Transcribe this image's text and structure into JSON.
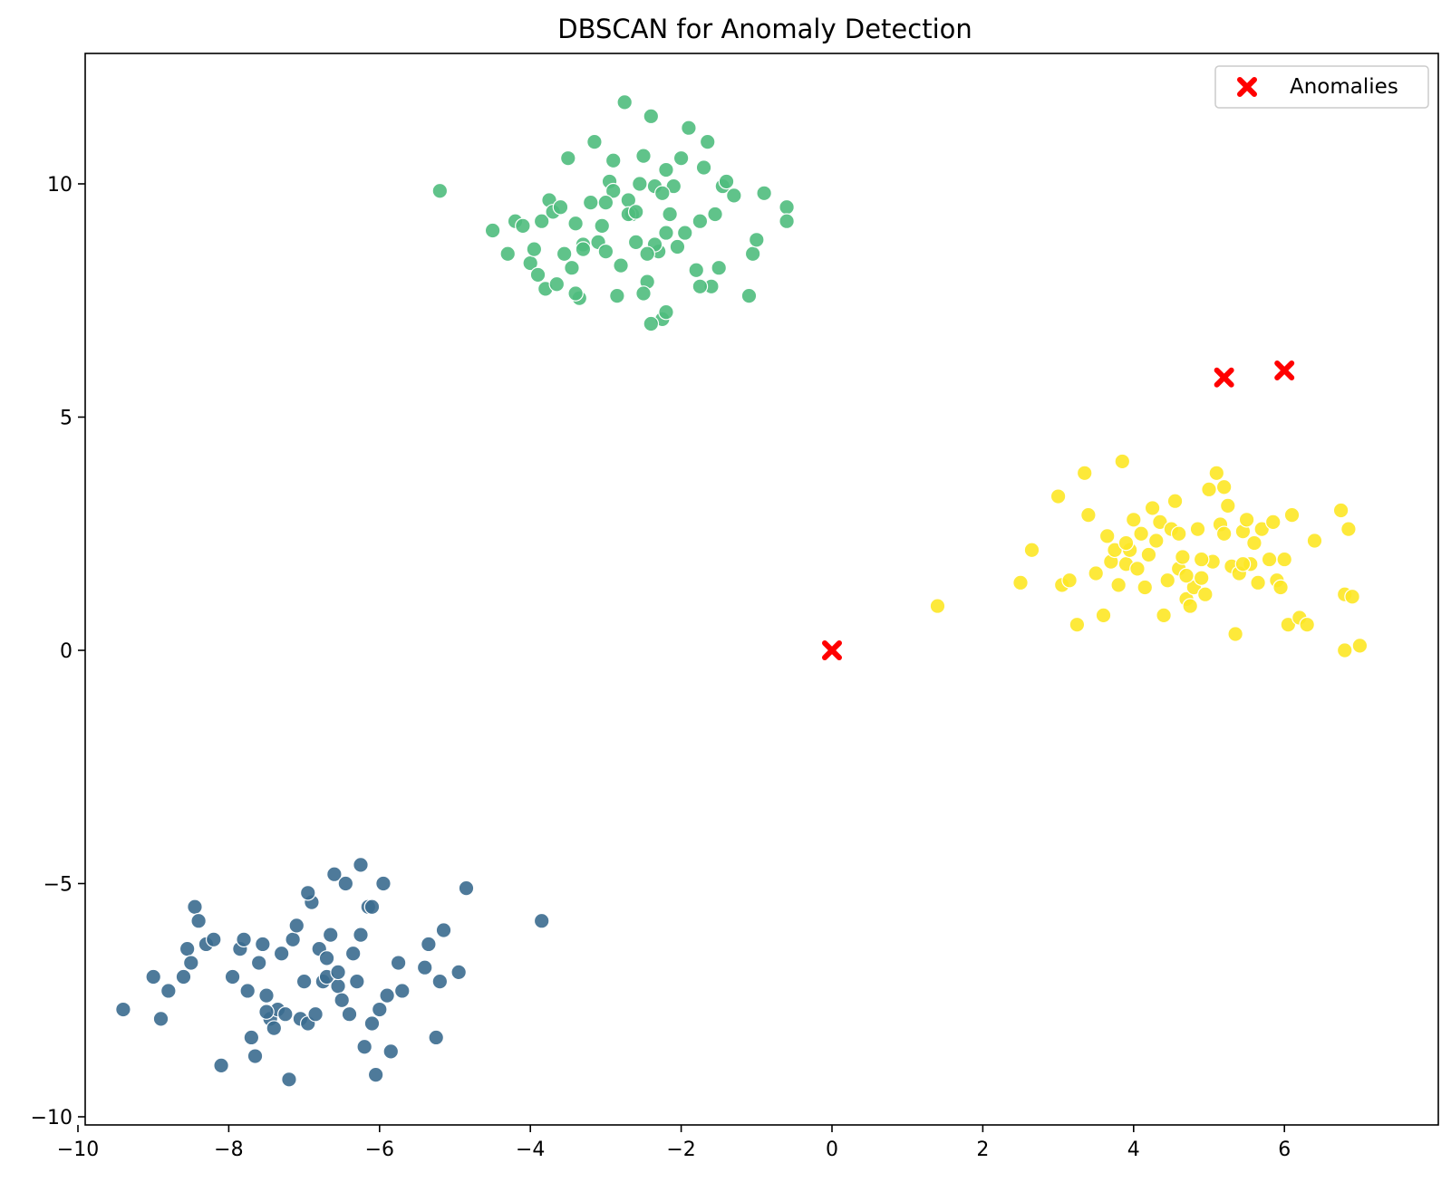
{
  "chart_data": {
    "type": "scatter",
    "title": "DBSCAN for Anomaly Detection",
    "xlabel": "",
    "ylabel": "",
    "xlim": [
      -10.2,
      7.7
    ],
    "ylim": [
      -10.2,
      12.8
    ],
    "xticks": [
      -10,
      -8,
      -6,
      -4,
      -2,
      0,
      2,
      4,
      6
    ],
    "xtick_labels": [
      "−10",
      "−8",
      "−6",
      "−4",
      "−2",
      "0",
      "2",
      "4",
      "6"
    ],
    "yticks": [
      -10,
      -5,
      0,
      5,
      10
    ],
    "ytick_labels": [
      "−10",
      "−5",
      "0",
      "5",
      "10"
    ],
    "grid": false,
    "legend": {
      "position": "top-right",
      "entries": [
        "Anomalies"
      ]
    },
    "series": [
      {
        "color": "#3b6b8f",
        "marker": "circle",
        "points": [
          [
            -9.4,
            -7.7
          ],
          [
            -9.0,
            -7.0
          ],
          [
            -8.9,
            -7.9
          ],
          [
            -8.8,
            -7.3
          ],
          [
            -8.6,
            -7.0
          ],
          [
            -8.55,
            -6.4
          ],
          [
            -8.5,
            -6.7
          ],
          [
            -8.45,
            -5.5
          ],
          [
            -8.4,
            -5.8
          ],
          [
            -8.3,
            -6.3
          ],
          [
            -8.2,
            -6.2
          ],
          [
            -8.1,
            -8.9
          ],
          [
            -7.95,
            -7.0
          ],
          [
            -7.85,
            -6.4
          ],
          [
            -7.8,
            -6.2
          ],
          [
            -7.75,
            -7.3
          ],
          [
            -7.7,
            -8.3
          ],
          [
            -7.65,
            -8.7
          ],
          [
            -7.6,
            -6.7
          ],
          [
            -7.55,
            -6.3
          ],
          [
            -7.5,
            -7.4
          ],
          [
            -7.45,
            -7.9
          ],
          [
            -7.4,
            -8.1
          ],
          [
            -7.35,
            -7.7
          ],
          [
            -7.3,
            -6.5
          ],
          [
            -7.25,
            -7.8
          ],
          [
            -7.2,
            -9.2
          ],
          [
            -7.15,
            -6.2
          ],
          [
            -7.1,
            -5.9
          ],
          [
            -7.05,
            -7.9
          ],
          [
            -7.0,
            -7.1
          ],
          [
            -6.95,
            -8.0
          ],
          [
            -6.9,
            -5.4
          ],
          [
            -6.85,
            -7.8
          ],
          [
            -6.8,
            -6.4
          ],
          [
            -6.75,
            -7.1
          ],
          [
            -6.7,
            -6.6
          ],
          [
            -6.65,
            -6.1
          ],
          [
            -6.6,
            -4.8
          ],
          [
            -6.55,
            -7.2
          ],
          [
            -6.5,
            -7.5
          ],
          [
            -6.45,
            -5.0
          ],
          [
            -6.4,
            -7.8
          ],
          [
            -6.35,
            -6.5
          ],
          [
            -6.3,
            -7.1
          ],
          [
            -6.25,
            -6.1
          ],
          [
            -6.2,
            -8.5
          ],
          [
            -6.15,
            -5.5
          ],
          [
            -6.1,
            -8.0
          ],
          [
            -6.05,
            -9.1
          ],
          [
            -6.0,
            -7.7
          ],
          [
            -5.95,
            -5.0
          ],
          [
            -5.9,
            -7.4
          ],
          [
            -5.85,
            -8.6
          ],
          [
            -5.75,
            -6.7
          ],
          [
            -5.7,
            -7.3
          ],
          [
            -5.4,
            -6.8
          ],
          [
            -5.35,
            -6.3
          ],
          [
            -5.25,
            -8.3
          ],
          [
            -5.2,
            -7.1
          ],
          [
            -5.15,
            -6.0
          ],
          [
            -4.95,
            -6.9
          ],
          [
            -4.85,
            -5.1
          ],
          [
            -3.85,
            -5.8
          ],
          [
            -6.25,
            -4.6
          ],
          [
            -6.1,
            -5.5
          ],
          [
            -6.95,
            -5.2
          ],
          [
            -6.7,
            -7.0
          ],
          [
            -7.5,
            -7.75
          ],
          [
            -6.55,
            -6.9
          ]
        ]
      },
      {
        "color": "#4fbd7d",
        "marker": "circle",
        "points": [
          [
            -5.2,
            9.85
          ],
          [
            -4.5,
            9.0
          ],
          [
            -4.3,
            8.5
          ],
          [
            -4.2,
            9.2
          ],
          [
            -4.1,
            9.1
          ],
          [
            -4.0,
            8.3
          ],
          [
            -3.95,
            8.6
          ],
          [
            -3.9,
            8.05
          ],
          [
            -3.85,
            9.2
          ],
          [
            -3.8,
            7.75
          ],
          [
            -3.75,
            9.65
          ],
          [
            -3.7,
            9.4
          ],
          [
            -3.65,
            7.85
          ],
          [
            -3.6,
            9.5
          ],
          [
            -3.55,
            8.5
          ],
          [
            -3.5,
            10.55
          ],
          [
            -3.45,
            8.2
          ],
          [
            -3.4,
            9.15
          ],
          [
            -3.35,
            7.55
          ],
          [
            -3.3,
            8.7
          ],
          [
            -3.2,
            9.6
          ],
          [
            -3.15,
            10.9
          ],
          [
            -3.1,
            8.75
          ],
          [
            -3.05,
            9.1
          ],
          [
            -3.0,
            8.55
          ],
          [
            -2.95,
            10.05
          ],
          [
            -2.9,
            9.85
          ],
          [
            -2.85,
            7.6
          ],
          [
            -2.8,
            8.25
          ],
          [
            -2.75,
            11.75
          ],
          [
            -2.7,
            9.65
          ],
          [
            -2.65,
            9.35
          ],
          [
            -2.6,
            8.75
          ],
          [
            -2.55,
            10.0
          ],
          [
            -2.5,
            10.6
          ],
          [
            -2.45,
            7.9
          ],
          [
            -2.4,
            11.45
          ],
          [
            -2.35,
            9.95
          ],
          [
            -2.3,
            8.55
          ],
          [
            -2.25,
            7.1
          ],
          [
            -2.2,
            10.3
          ],
          [
            -2.15,
            9.35
          ],
          [
            -2.1,
            9.95
          ],
          [
            -2.05,
            8.65
          ],
          [
            -2.0,
            10.55
          ],
          [
            -1.95,
            8.95
          ],
          [
            -1.9,
            11.2
          ],
          [
            -1.8,
            8.15
          ],
          [
            -1.75,
            9.2
          ],
          [
            -1.7,
            10.35
          ],
          [
            -1.65,
            10.9
          ],
          [
            -1.6,
            7.8
          ],
          [
            -1.55,
            9.35
          ],
          [
            -1.5,
            8.2
          ],
          [
            -1.45,
            9.95
          ],
          [
            -1.4,
            10.05
          ],
          [
            -1.3,
            9.75
          ],
          [
            -1.1,
            7.6
          ],
          [
            -1.05,
            8.5
          ],
          [
            -1.0,
            8.8
          ],
          [
            -0.9,
            9.8
          ],
          [
            -0.6,
            9.5
          ],
          [
            -0.6,
            9.2
          ],
          [
            -2.4,
            7.0
          ],
          [
            -2.2,
            7.25
          ],
          [
            -2.5,
            7.65
          ],
          [
            -3.4,
            7.65
          ],
          [
            -3.0,
            9.6
          ],
          [
            -2.7,
            9.35
          ],
          [
            -2.35,
            8.7
          ],
          [
            -2.25,
            9.8
          ],
          [
            -2.2,
            8.95
          ],
          [
            -3.3,
            8.6
          ],
          [
            -2.6,
            9.4
          ],
          [
            -2.9,
            10.5
          ],
          [
            -1.75,
            7.8
          ],
          [
            -2.45,
            8.5
          ]
        ]
      },
      {
        "color": "#fde725",
        "marker": "circle",
        "points": [
          [
            1.4,
            0.95
          ],
          [
            2.5,
            1.45
          ],
          [
            2.65,
            2.15
          ],
          [
            3.0,
            3.3
          ],
          [
            3.05,
            1.4
          ],
          [
            3.15,
            1.5
          ],
          [
            3.25,
            0.55
          ],
          [
            3.35,
            3.8
          ],
          [
            3.4,
            2.9
          ],
          [
            3.5,
            1.65
          ],
          [
            3.6,
            0.75
          ],
          [
            3.65,
            2.45
          ],
          [
            3.7,
            1.9
          ],
          [
            3.75,
            2.15
          ],
          [
            3.8,
            1.4
          ],
          [
            3.85,
            4.05
          ],
          [
            3.9,
            1.85
          ],
          [
            3.95,
            2.15
          ],
          [
            4.0,
            2.8
          ],
          [
            4.05,
            1.75
          ],
          [
            4.1,
            2.5
          ],
          [
            4.15,
            1.35
          ],
          [
            4.2,
            2.05
          ],
          [
            4.25,
            3.05
          ],
          [
            4.3,
            2.35
          ],
          [
            4.35,
            2.75
          ],
          [
            4.4,
            0.75
          ],
          [
            4.45,
            1.5
          ],
          [
            4.5,
            2.6
          ],
          [
            4.55,
            3.2
          ],
          [
            4.6,
            1.75
          ],
          [
            4.65,
            2.0
          ],
          [
            4.7,
            1.1
          ],
          [
            4.75,
            0.95
          ],
          [
            4.8,
            1.35
          ],
          [
            4.85,
            2.6
          ],
          [
            4.9,
            1.55
          ],
          [
            4.95,
            1.2
          ],
          [
            5.0,
            3.45
          ],
          [
            5.05,
            1.9
          ],
          [
            5.1,
            3.8
          ],
          [
            5.15,
            2.7
          ],
          [
            5.2,
            2.5
          ],
          [
            5.25,
            3.1
          ],
          [
            5.3,
            1.8
          ],
          [
            5.35,
            0.35
          ],
          [
            5.4,
            1.65
          ],
          [
            5.45,
            2.55
          ],
          [
            5.5,
            2.8
          ],
          [
            5.55,
            1.85
          ],
          [
            5.6,
            2.3
          ],
          [
            5.65,
            1.45
          ],
          [
            5.7,
            2.6
          ],
          [
            5.8,
            1.95
          ],
          [
            5.85,
            2.75
          ],
          [
            5.9,
            1.5
          ],
          [
            5.95,
            1.35
          ],
          [
            6.0,
            1.95
          ],
          [
            6.05,
            0.55
          ],
          [
            6.1,
            2.9
          ],
          [
            6.2,
            0.7
          ],
          [
            6.3,
            0.55
          ],
          [
            6.4,
            2.35
          ],
          [
            6.75,
            3.0
          ],
          [
            6.8,
            1.2
          ],
          [
            6.85,
            2.6
          ],
          [
            6.9,
            1.15
          ],
          [
            6.8,
            0.0
          ],
          [
            7.0,
            0.1
          ],
          [
            5.2,
            3.5
          ],
          [
            4.7,
            1.6
          ],
          [
            4.6,
            2.5
          ],
          [
            4.9,
            1.95
          ],
          [
            5.45,
            1.85
          ],
          [
            3.9,
            2.3
          ]
        ]
      }
    ],
    "anomalies": {
      "name": "Anomalies",
      "color": "#ff0000",
      "marker": "x",
      "points": [
        [
          0.0,
          0.0
        ],
        [
          5.2,
          5.85
        ],
        [
          6.0,
          6.0
        ]
      ]
    }
  }
}
